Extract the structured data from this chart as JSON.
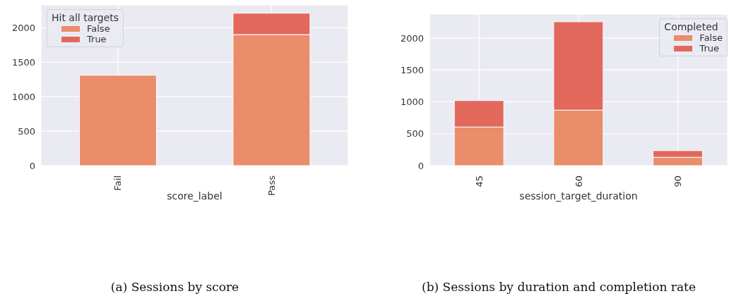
{
  "chart_data": [
    {
      "type": "bar",
      "title": "(a) Sessions by score",
      "xlabel": "score_label",
      "legend_title": "Hit all targets",
      "categories": [
        "Fail",
        "Pass"
      ],
      "stacked": true,
      "ylim": [
        0,
        2330
      ],
      "yticks": [
        0,
        500,
        1000,
        1500,
        2000
      ],
      "grid": true,
      "legend": "top left",
      "series": [
        {
          "name": "False",
          "color": "#e98d6b",
          "values": [
            1310,
            1900
          ]
        },
        {
          "name": "True",
          "color": "#e3685c",
          "values": [
            0,
            310
          ]
        }
      ]
    },
    {
      "type": "bar",
      "title": "(b) Sessions by duration and completion rate",
      "xlabel": "session_target_duration",
      "legend_title": "Completed",
      "categories": [
        "45",
        "60",
        "90"
      ],
      "stacked": true,
      "ylim": [
        0,
        2375
      ],
      "yticks": [
        0,
        500,
        1000,
        1500,
        2000
      ],
      "grid": true,
      "legend": "top right",
      "series": [
        {
          "name": "False",
          "color": "#e98d6b",
          "values": [
            605,
            870,
            130
          ]
        },
        {
          "name": "True",
          "color": "#e3685c",
          "values": [
            415,
            1385,
            105
          ]
        }
      ]
    }
  ]
}
